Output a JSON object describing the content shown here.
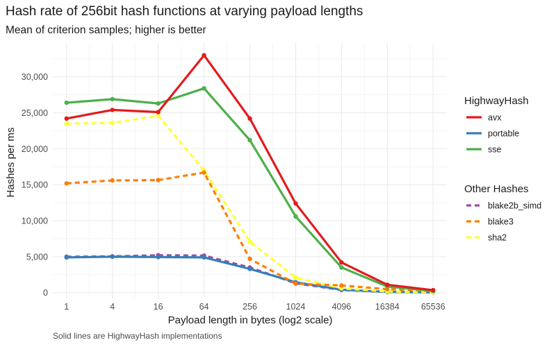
{
  "chart_data": {
    "type": "line",
    "title": "Hash rate of 256bit hash functions at varying payload lengths",
    "subtitle": "Mean of criterion samples; higher is better",
    "caption": "Solid lines are HighwayHash implementations",
    "xlabel": "Payload length in bytes (log2 scale)",
    "ylabel": "Hashes per ms",
    "x_scale": "log2",
    "x": [
      1,
      4,
      16,
      64,
      256,
      1024,
      4096,
      16384,
      65536
    ],
    "x_tick_labels": [
      "1",
      "4",
      "16",
      "64",
      "256",
      "1024",
      "4096",
      "16384",
      "65536"
    ],
    "ylim": [
      -800,
      34700
    ],
    "y_ticks": [
      0,
      5000,
      10000,
      15000,
      20000,
      25000,
      30000
    ],
    "y_tick_labels": [
      "0",
      "5,000",
      "10,000",
      "15,000",
      "20,000",
      "25,000",
      "30,000"
    ],
    "grid": true,
    "legend_placement": "right",
    "legend_groups": [
      {
        "title": "HighwayHash",
        "entries": [
          "avx",
          "portable",
          "sse"
        ]
      },
      {
        "title": "Other Hashes",
        "entries": [
          "blake2b_simd",
          "blake3",
          "sha2"
        ]
      }
    ],
    "series": [
      {
        "name": "avx",
        "color": "#e41a1c",
        "dashed": false,
        "values": [
          24200,
          25400,
          25100,
          33000,
          24200,
          12400,
          4200,
          1100,
          350
        ]
      },
      {
        "name": "portable",
        "color": "#377eb8",
        "dashed": false,
        "values": [
          4900,
          5000,
          4950,
          4900,
          3300,
          1450,
          420,
          110,
          30
        ]
      },
      {
        "name": "sse",
        "color": "#4daf4a",
        "dashed": false,
        "values": [
          26400,
          26900,
          26300,
          28400,
          21200,
          10600,
          3500,
          850,
          230
        ]
      },
      {
        "name": "blake2b_simd",
        "color": "#984ea3",
        "dashed": true,
        "values": [
          5000,
          5050,
          5200,
          5150,
          3500,
          1300,
          380,
          100,
          25
        ]
      },
      {
        "name": "blake3",
        "color": "#ff7f00",
        "dashed": true,
        "values": [
          15200,
          15600,
          15650,
          16700,
          4700,
          1250,
          1000,
          480,
          240
        ]
      },
      {
        "name": "sha2",
        "color": "#ffff33",
        "dashed": true,
        "values": [
          23500,
          23600,
          24600,
          17000,
          7100,
          2100,
          600,
          160,
          40
        ]
      }
    ]
  }
}
